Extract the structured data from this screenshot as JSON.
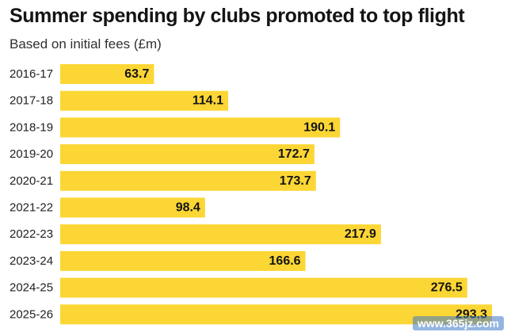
{
  "title": "Summer spending by clubs promoted to top flight",
  "subtitle": "Based on initial fees (£m)",
  "watermark": "www.365jz.com",
  "colors": {
    "bar": "#fcd634",
    "label": "#141414",
    "axis_text": "#222222"
  },
  "chart_data": {
    "type": "bar",
    "orientation": "horizontal",
    "title": "Summer spending by clubs promoted to top flight",
    "subtitle": "Based on initial fees (£m)",
    "categories": [
      "2016-17",
      "2017-18",
      "2018-19",
      "2019-20",
      "2020-21",
      "2021-22",
      "2022-23",
      "2023-24",
      "2024-25",
      "2025-26"
    ],
    "values": [
      63.7,
      114.1,
      190.1,
      172.7,
      173.7,
      98.4,
      217.9,
      166.6,
      276.5,
      293.3
    ],
    "value_labels": [
      "63.7",
      "114.1",
      "190.1",
      "172.7",
      "173.7",
      "98.4",
      "217.9",
      "166.6",
      "276.5",
      "293.3"
    ],
    "xlim": [
      0,
      293.3
    ],
    "grid": false,
    "legend": "none"
  }
}
